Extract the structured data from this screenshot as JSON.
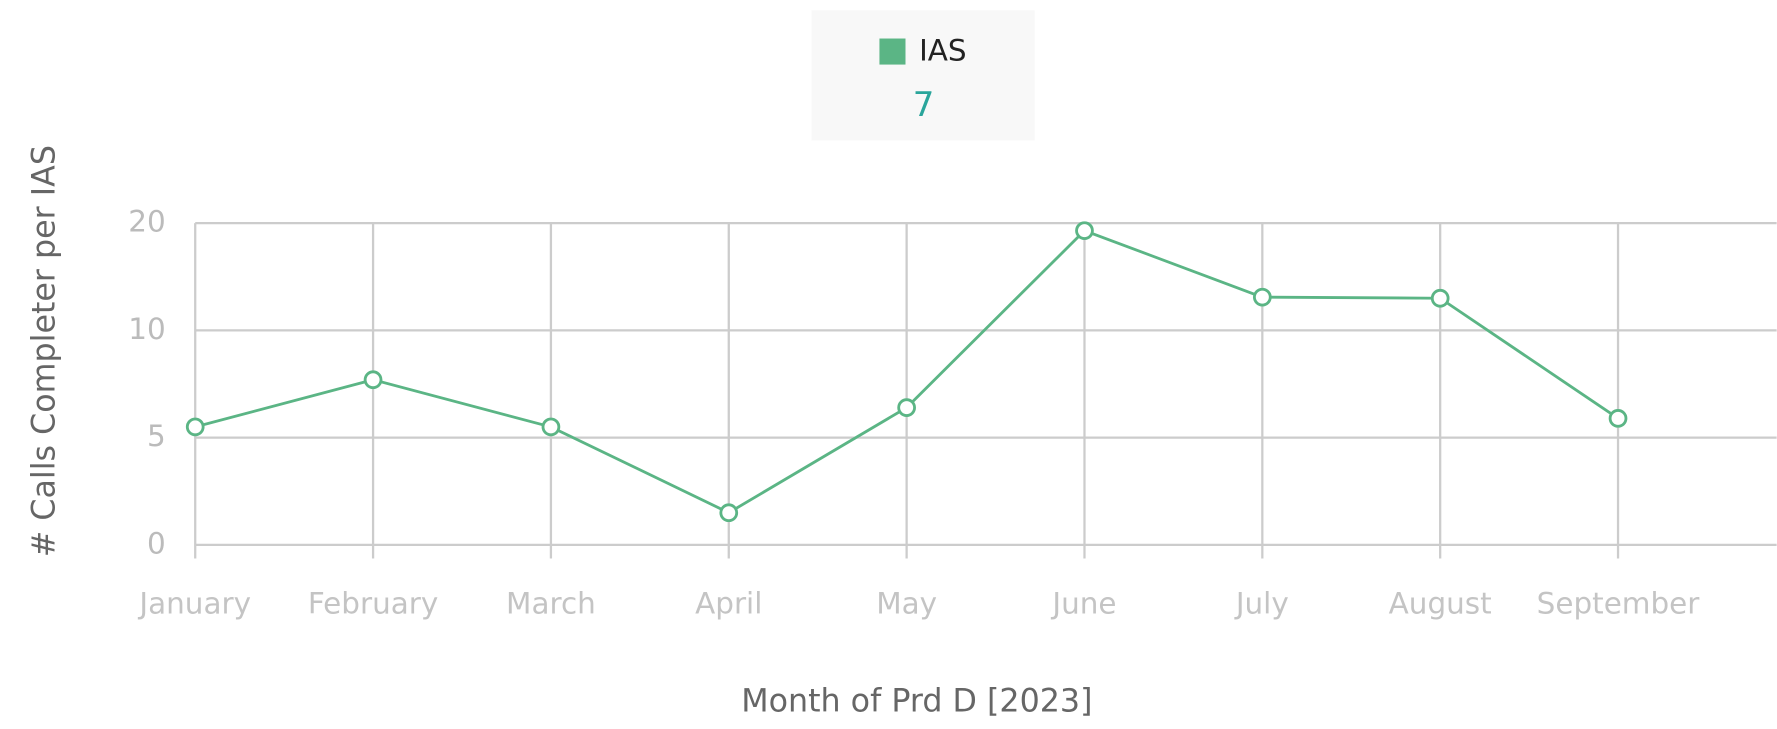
{
  "chart_data": {
    "type": "line",
    "x_axis_label": "Month of Prd D [2023]",
    "y_axis_label": "# Calls Completer per IAS",
    "categories": [
      "January",
      "February",
      "March",
      "April",
      "May",
      "June",
      "July",
      "August",
      "September"
    ],
    "series": [
      {
        "name": "IAS",
        "color": "#5bb585",
        "values": [
          5.5,
          7.7,
          5.5,
          1.5,
          6.4,
          19.3,
          13.1,
          13.0,
          5.9
        ]
      }
    ],
    "legend_value": "7",
    "ylim": [
      0,
      20
    ],
    "yticks": [
      0,
      5,
      10,
      20
    ],
    "y_scale": "tick-spaced",
    "grid": true
  }
}
